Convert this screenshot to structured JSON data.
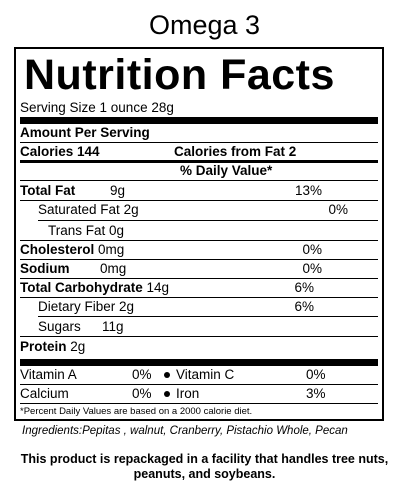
{
  "title": "Omega 3",
  "label": {
    "heading": "Nutrition Facts",
    "serving_size": "Serving Size 1 ounce 28g",
    "amount_per_serving": "Amount Per Serving",
    "calories": "Calories 144",
    "calories_from_fat": "Calories from Fat 2",
    "daily_value_header": "% Daily Value*",
    "nutrients": [
      {
        "name": "Total Fat",
        "amount": "9g",
        "dv": "13%"
      },
      {
        "name": "Saturated Fat",
        "amount": "2g",
        "dv": "0%"
      },
      {
        "name": "Trans Fat",
        "amount": "0g",
        "dv": ""
      },
      {
        "name": "Cholesterol",
        "amount": "0mg",
        "dv": "0%"
      },
      {
        "name": "Sodium",
        "amount": "0mg",
        "dv": "0%"
      },
      {
        "name": "Total Carbohydrate",
        "amount": "14g",
        "dv": "6%"
      },
      {
        "name": "Dietary Fiber",
        "amount": "2g",
        "dv": "6%"
      },
      {
        "name": "Sugars",
        "amount": "11g",
        "dv": ""
      },
      {
        "name": "Protein",
        "amount": "2g",
        "dv": ""
      }
    ],
    "vitamins": [
      {
        "name": "Vitamin A",
        "dv": "0%"
      },
      {
        "name": "Vitamin C",
        "dv": "0%"
      },
      {
        "name": "Calcium",
        "dv": "0%"
      },
      {
        "name": "Iron",
        "dv": "3%"
      }
    ],
    "footnote": "*Percent Daily Values are based on a 2000 calorie diet."
  },
  "ingredients": "Ingredients:Pepitas , walnut, Cranberry, Pistachio Whole, Pecan",
  "allergen_notice_line1": "This product is repackaged in a facility that handles tree nuts,",
  "allergen_notice_line2": "peanuts, and soybeans."
}
